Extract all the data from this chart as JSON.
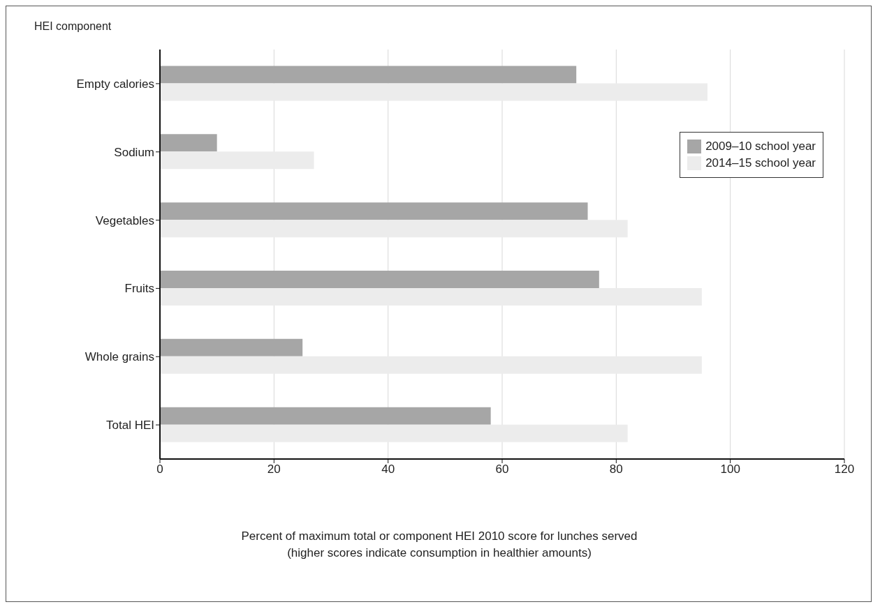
{
  "chart_data": {
    "type": "bar",
    "orientation": "horizontal",
    "ylabel": "HEI component",
    "xlabel": "Percent of maximum total or component HEI 2010 score for lunches served (higher scores indicate consumption in healthier amounts)",
    "categories": [
      "Empty calories",
      "Sodium",
      "Vegetables",
      "Fruits",
      "Whole grains",
      "Total HEI"
    ],
    "series": [
      {
        "name": "2009–10 school year",
        "color": "#a6a6a6",
        "values": [
          73,
          10,
          75,
          77,
          25,
          58
        ]
      },
      {
        "name": "2014–15 school year",
        "color": "#ececec",
        "values": [
          96,
          27,
          82,
          95,
          95,
          82
        ]
      }
    ],
    "xlim": [
      0,
      120
    ],
    "xticks": [
      0,
      20,
      40,
      60,
      80,
      100,
      120
    ],
    "grid": "x",
    "legend": "top right"
  }
}
